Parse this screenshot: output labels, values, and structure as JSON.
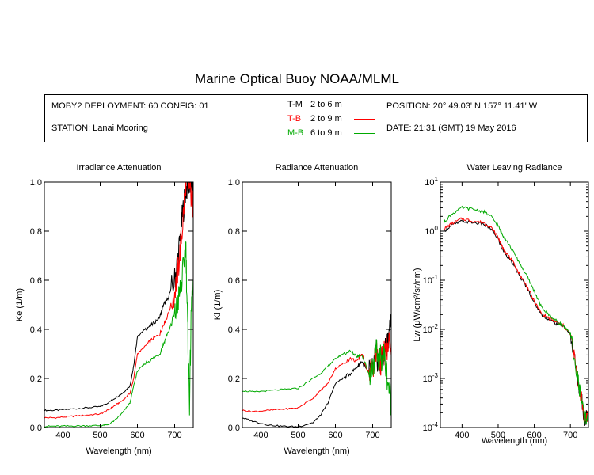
{
  "title": "Marine Optical Buoy NOAA/MLML",
  "info": {
    "deployment": "MOBY2 DEPLOYMENT: 60 CONFIG: 01",
    "station": "STATION: Lanai Mooring",
    "position": "POSITION: 20° 49.03' N   157° 11.41' W",
    "date": "DATE: 21:31 (GMT) 19 May 2016",
    "legend": [
      {
        "code": "T-M",
        "range": "2 to 6  m",
        "color": "#000000"
      },
      {
        "code": "T-B",
        "range": "2 to 9  m",
        "color": "#ff0000"
      },
      {
        "code": "M-B",
        "range": "6 to 9  m",
        "color": "#00aa00"
      }
    ]
  },
  "chart_data": [
    {
      "type": "line",
      "title": "Irradiance Attenuation",
      "xlabel": "Wavelength (nm)",
      "ylabel": "Ke  (1/m)",
      "xlim": [
        350,
        750
      ],
      "ylim": [
        0,
        1
      ],
      "xticks": [
        400,
        500,
        600,
        700
      ],
      "yticks": [
        "0.0",
        "0.2",
        "0.4",
        "0.6",
        "0.8",
        "1.0"
      ],
      "series": [
        {
          "name": "T-M",
          "color": "#000000",
          "x": [
            350,
            380,
            420,
            460,
            500,
            520,
            540,
            560,
            580,
            590,
            600,
            620,
            640,
            660,
            670,
            680,
            700,
            710,
            720,
            730,
            740,
            750
          ],
          "y": [
            0.07,
            0.07,
            0.075,
            0.08,
            0.085,
            0.1,
            0.12,
            0.14,
            0.17,
            0.25,
            0.37,
            0.4,
            0.42,
            0.45,
            0.5,
            0.52,
            0.6,
            0.7,
            0.85,
            0.97,
            1.0,
            0.95
          ]
        },
        {
          "name": "T-B",
          "color": "#ff0000",
          "x": [
            350,
            380,
            420,
            460,
            500,
            520,
            540,
            560,
            580,
            590,
            600,
            620,
            640,
            660,
            670,
            680,
            700,
            710,
            720,
            730,
            740,
            750
          ],
          "y": [
            0.04,
            0.04,
            0.045,
            0.05,
            0.055,
            0.07,
            0.09,
            0.11,
            0.14,
            0.2,
            0.3,
            0.33,
            0.36,
            0.38,
            0.42,
            0.45,
            0.55,
            0.65,
            0.8,
            1.0,
            0.98,
            0.9
          ]
        },
        {
          "name": "M-B",
          "color": "#00aa00",
          "x": [
            350,
            380,
            420,
            460,
            500,
            520,
            540,
            560,
            580,
            590,
            600,
            620,
            640,
            660,
            670,
            680,
            700,
            710,
            720,
            730,
            735,
            740,
            745,
            750
          ],
          "y": [
            0.005,
            0.005,
            0.006,
            0.007,
            0.008,
            0.01,
            0.03,
            0.06,
            0.1,
            0.17,
            0.23,
            0.26,
            0.28,
            0.3,
            0.34,
            0.38,
            0.45,
            0.52,
            0.6,
            0.75,
            0.4,
            0.1,
            0.5,
            0.55
          ]
        }
      ]
    },
    {
      "type": "line",
      "title": "Radiance Attenuation",
      "xlabel": "Wavelength (nm)",
      "ylabel": "Kl  (1/m)",
      "xlim": [
        350,
        750
      ],
      "ylim": [
        0,
        1
      ],
      "xticks": [
        400,
        500,
        600,
        700
      ],
      "yticks": [
        "0.0",
        "0.2",
        "0.4",
        "0.6",
        "0.8",
        "1.0"
      ],
      "series": [
        {
          "name": "T-M",
          "color": "#000000",
          "x": [
            350,
            380,
            420,
            460,
            500,
            540,
            560,
            580,
            600,
            620,
            640,
            660,
            670,
            690,
            700,
            710,
            720,
            730,
            740,
            750
          ],
          "y": [
            0.04,
            0.025,
            0.01,
            0.005,
            0.003,
            0.02,
            0.05,
            0.1,
            0.18,
            0.2,
            0.22,
            0.25,
            0.27,
            0.22,
            0.23,
            0.3,
            0.25,
            0.3,
            0.35,
            0.45
          ]
        },
        {
          "name": "T-B",
          "color": "#ff0000",
          "x": [
            350,
            380,
            420,
            460,
            500,
            540,
            560,
            580,
            600,
            620,
            640,
            660,
            670,
            690,
            700,
            710,
            720,
            730,
            740,
            750
          ],
          "y": [
            0.07,
            0.065,
            0.07,
            0.075,
            0.08,
            0.12,
            0.15,
            0.18,
            0.24,
            0.26,
            0.28,
            0.27,
            0.3,
            0.22,
            0.25,
            0.3,
            0.26,
            0.3,
            0.32,
            0.35
          ]
        },
        {
          "name": "M-B",
          "color": "#00aa00",
          "x": [
            350,
            380,
            420,
            460,
            500,
            540,
            560,
            580,
            600,
            620,
            640,
            660,
            670,
            690,
            700,
            710,
            720,
            730,
            740,
            750
          ],
          "y": [
            0.15,
            0.145,
            0.15,
            0.155,
            0.16,
            0.2,
            0.22,
            0.25,
            0.28,
            0.3,
            0.31,
            0.29,
            0.3,
            0.22,
            0.25,
            0.3,
            0.28,
            0.3,
            0.2,
            0.1
          ]
        }
      ]
    },
    {
      "type": "line",
      "title": "Water Leaving Radiance",
      "xlabel": "Wavelength (nm)",
      "ylabel": "Lw  (μW/cm²/sr/nm)",
      "yscale": "log",
      "xlim": [
        340,
        750
      ],
      "ylim": [
        0.0001,
        10
      ],
      "xticks": [
        400,
        500,
        600,
        700
      ],
      "yticks": [
        {
          "base": "10",
          "exp": "-4"
        },
        {
          "base": "10",
          "exp": "-3"
        },
        {
          "base": "10",
          "exp": "-2"
        },
        {
          "base": "10",
          "exp": "-1"
        },
        {
          "base": "10",
          "exp": "0"
        },
        {
          "base": "10",
          "exp": "1"
        }
      ],
      "series": [
        {
          "name": "T-M",
          "color": "#000000",
          "x": [
            350,
            370,
            400,
            430,
            460,
            480,
            500,
            510,
            520,
            540,
            560,
            580,
            600,
            620,
            640,
            660,
            680,
            700,
            720,
            730,
            740,
            750
          ],
          "y": [
            1.0,
            1.3,
            1.6,
            1.5,
            1.4,
            1.1,
            0.7,
            0.45,
            0.35,
            0.22,
            0.12,
            0.07,
            0.035,
            0.02,
            0.016,
            0.013,
            0.012,
            0.008,
            0.001,
            0.0004,
            0.00015,
            0.0002
          ]
        },
        {
          "name": "T-B",
          "color": "#ff0000",
          "x": [
            350,
            370,
            400,
            430,
            460,
            480,
            500,
            510,
            520,
            540,
            560,
            580,
            600,
            620,
            640,
            660,
            680,
            700,
            720,
            730,
            740,
            750
          ],
          "y": [
            1.1,
            1.4,
            1.8,
            1.6,
            1.5,
            1.2,
            0.75,
            0.5,
            0.38,
            0.24,
            0.13,
            0.075,
            0.037,
            0.021,
            0.017,
            0.014,
            0.012,
            0.008,
            0.001,
            0.0004,
            0.00015,
            0.0002
          ]
        },
        {
          "name": "M-B",
          "color": "#00aa00",
          "x": [
            350,
            370,
            400,
            430,
            460,
            480,
            500,
            510,
            520,
            540,
            560,
            580,
            600,
            620,
            640,
            660,
            680,
            700,
            720,
            730,
            740,
            750
          ],
          "y": [
            1.5,
            2.2,
            3.0,
            2.8,
            2.5,
            2.0,
            1.3,
            0.9,
            0.7,
            0.4,
            0.22,
            0.12,
            0.06,
            0.028,
            0.02,
            0.015,
            0.012,
            0.008,
            0.001,
            0.0004,
            0.00015,
            0.0002
          ]
        }
      ]
    }
  ]
}
